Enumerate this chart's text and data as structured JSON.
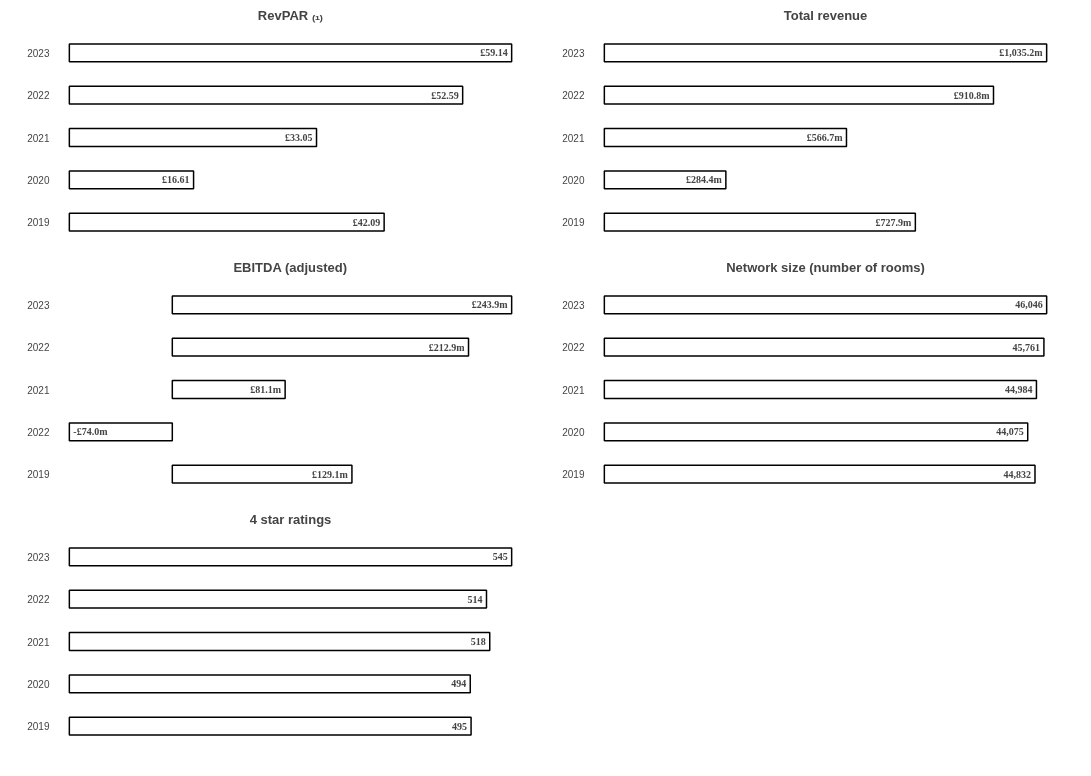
{
  "chart_data": [
    {
      "type": "bar",
      "orientation": "horizontal",
      "title": "RevPAR ₍₁₎",
      "categories": [
        "2023",
        "2022",
        "2021",
        "2020",
        "2019"
      ],
      "values": [
        59.14,
        52.59,
        33.05,
        16.61,
        42.09
      ],
      "value_labels": [
        "£59.14",
        "£52.59",
        "£33.05",
        "£16.61",
        "£42.09"
      ],
      "color": "#ffffff",
      "tick_labels": "y"
    },
    {
      "type": "bar",
      "orientation": "horizontal",
      "title": "Total revenue",
      "categories": [
        "2023",
        "2022",
        "2021",
        "2020",
        "2019"
      ],
      "values": [
        1035.2,
        910.8,
        566.7,
        284.4,
        727.9
      ],
      "value_labels": [
        "£1,035.2m",
        "£910.8m",
        "£566.7m",
        "£284.4m",
        "£727.9m"
      ],
      "color": "#ffffff",
      "tick_labels": "y"
    },
    {
      "type": "bar",
      "orientation": "horizontal",
      "title": "EBITDA (adjusted)",
      "categories": [
        "2023",
        "2022",
        "2021",
        "2022",
        "2019"
      ],
      "values": [
        243.9,
        212.9,
        81.1,
        -74.0,
        129.1
      ],
      "value_labels": [
        "£243.9m",
        "£212.9m",
        "£81.1m",
        "-£74.0m",
        "£129.1m"
      ],
      "color": "#ffffff",
      "tick_labels": "y"
    },
    {
      "type": "bar",
      "orientation": "horizontal",
      "title": "Network size (number of rooms)",
      "categories": [
        "2023",
        "2022",
        "2021",
        "2020",
        "2019"
      ],
      "values": [
        46046,
        45761,
        44984,
        44075,
        44832
      ],
      "value_labels": [
        "46,046",
        "45,761",
        "44,984",
        "44,075",
        "44,832"
      ],
      "color": "#ffffff",
      "tick_labels": "y"
    },
    {
      "type": "bar",
      "orientation": "horizontal",
      "title": "4 star ratings",
      "categories": [
        "2023",
        "2022",
        "2021",
        "2020",
        "2019"
      ],
      "values": [
        545,
        514,
        518,
        494,
        495
      ],
      "value_labels": [
        "545",
        "514",
        "518",
        "494",
        "495"
      ],
      "color": "#ffffff",
      "tick_labels": "y"
    }
  ]
}
